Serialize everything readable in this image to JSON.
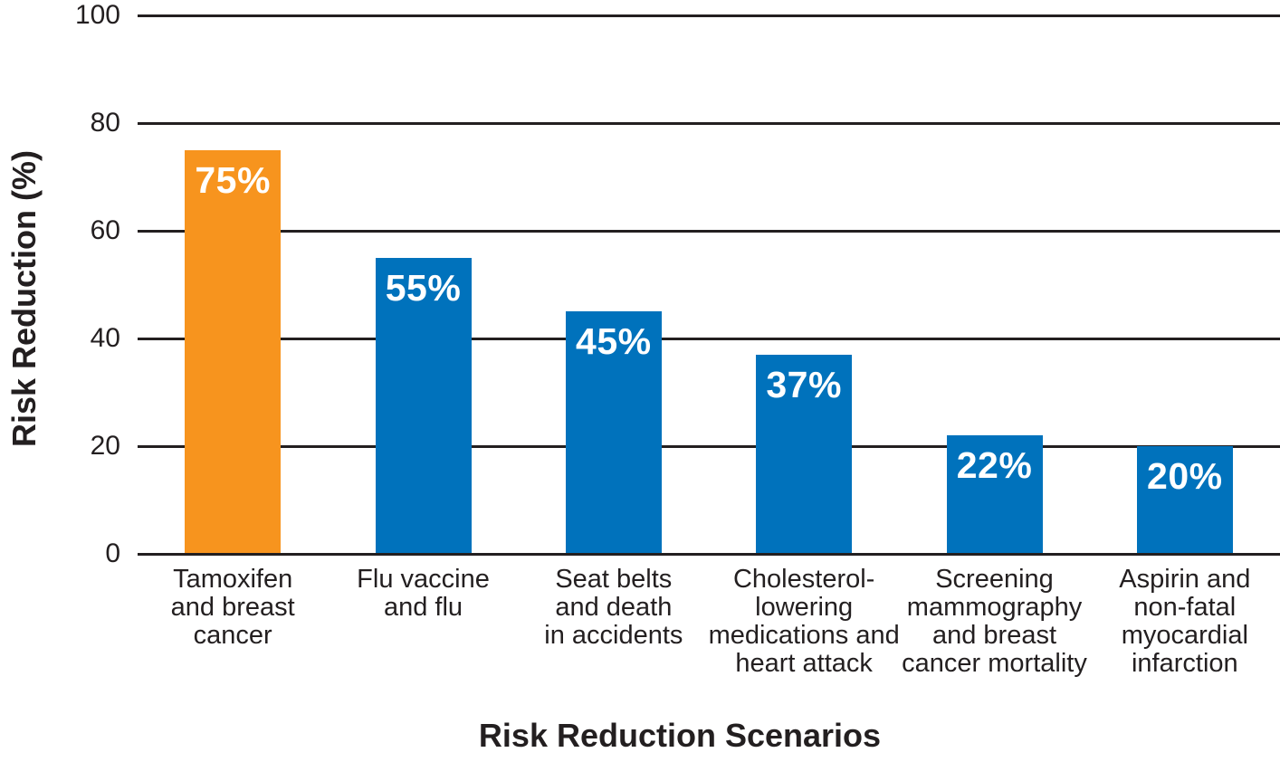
{
  "chart_data": {
    "type": "bar",
    "title": "",
    "xlabel": "Risk Reduction Scenarios",
    "ylabel": "Risk Reduction (%)",
    "ylim": [
      0,
      100
    ],
    "yticks": [
      0,
      20,
      40,
      60,
      80,
      100
    ],
    "grid": true,
    "legend": false,
    "categories": [
      "Tamoxifen\nand breast\ncancer",
      "Flu vaccine\nand flu",
      "Seat belts\nand death\nin accidents",
      "Cholesterol-\nlowering\nmedications and\nheart attack",
      "Screening\nmammography\nand breast\ncancer mortality",
      "Aspirin and\nnon-fatal\nmyocardial\ninfarction"
    ],
    "values": [
      75,
      55,
      45,
      37,
      22,
      20
    ],
    "bar_labels": [
      "75%",
      "55%",
      "45%",
      "37%",
      "22%",
      "20%"
    ],
    "bar_colors": [
      "#F7941E",
      "#0072BC",
      "#0072BC",
      "#0072BC",
      "#0072BC",
      "#0072BC"
    ],
    "colors": {
      "highlight_orange": "#F7941E",
      "bar_blue": "#0072BC",
      "axis_line": "#231F20",
      "text": "#231F20",
      "bar_label_text": "#FFFFFF",
      "background": "#FFFFFF"
    }
  }
}
